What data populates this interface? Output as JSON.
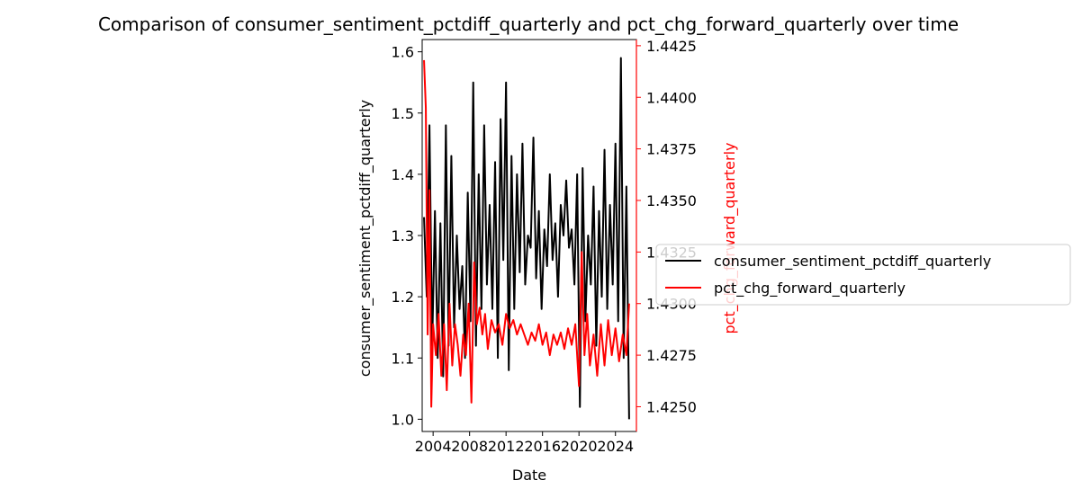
{
  "chart_data": {
    "type": "line",
    "title": "Comparison of consumer_sentiment_pctdiff_quarterly and pct_chg_forward_quarterly over time",
    "xlabel": "Date",
    "ylabel": "consumer_sentiment_pctdiff_quarterly",
    "y2label": "pct_chg_forward_quarterly",
    "xlim": [
      2002.8,
      2026.3
    ],
    "ylim": [
      0.98,
      1.62
    ],
    "y2lim": [
      1.4238,
      1.4428
    ],
    "xticks": [
      2004,
      2008,
      2012,
      2016,
      2020,
      2024
    ],
    "xtick_labels": [
      "2004",
      "2008",
      "2012",
      "2016",
      "2020",
      "2024"
    ],
    "yticks": [
      1.0,
      1.1,
      1.2,
      1.3,
      1.4,
      1.5,
      1.6
    ],
    "ytick_labels": [
      "1.0",
      "1.1",
      "1.2",
      "1.3",
      "1.4",
      "1.5",
      "1.6"
    ],
    "y2ticks": [
      1.425,
      1.4275,
      1.43,
      1.4325,
      1.435,
      1.4375,
      1.44,
      1.4425
    ],
    "y2tick_labels": [
      "1.4250",
      "1.4275",
      "1.4300",
      "1.4325",
      "1.4350",
      "1.4375",
      "1.4400",
      "1.4425"
    ],
    "legend_position": "right-outside",
    "series": [
      {
        "name": "consumer_sentiment_pctdiff_quarterly",
        "color": "#000000",
        "axis": "left",
        "x": [
          2003.0,
          2003.3,
          2003.6,
          2003.9,
          2004.2,
          2004.5,
          2004.8,
          2005.1,
          2005.4,
          2005.7,
          2006.0,
          2006.3,
          2006.6,
          2006.9,
          2007.2,
          2007.5,
          2007.8,
          2008.1,
          2008.4,
          2008.7,
          2009.0,
          2009.3,
          2009.6,
          2009.9,
          2010.2,
          2010.5,
          2010.8,
          2011.1,
          2011.4,
          2011.7,
          2012.0,
          2012.3,
          2012.6,
          2012.9,
          2013.2,
          2013.5,
          2013.8,
          2014.1,
          2014.4,
          2014.7,
          2015.0,
          2015.3,
          2015.6,
          2015.9,
          2016.2,
          2016.5,
          2016.8,
          2017.1,
          2017.4,
          2017.7,
          2018.0,
          2018.3,
          2018.6,
          2018.9,
          2019.2,
          2019.5,
          2019.8,
          2020.1,
          2020.4,
          2020.7,
          2021.0,
          2021.3,
          2021.6,
          2021.9,
          2022.2,
          2022.5,
          2022.8,
          2023.1,
          2023.4,
          2023.7,
          2024.0,
          2024.3,
          2024.6,
          2024.9,
          2025.2,
          2025.5
        ],
        "values": [
          1.33,
          1.2,
          1.48,
          1.12,
          1.34,
          1.1,
          1.32,
          1.07,
          1.48,
          1.12,
          1.43,
          1.15,
          1.3,
          1.18,
          1.25,
          1.1,
          1.37,
          1.16,
          1.55,
          1.12,
          1.4,
          1.18,
          1.48,
          1.22,
          1.35,
          1.18,
          1.42,
          1.1,
          1.49,
          1.26,
          1.55,
          1.08,
          1.43,
          1.18,
          1.4,
          1.24,
          1.45,
          1.22,
          1.3,
          1.28,
          1.46,
          1.23,
          1.34,
          1.18,
          1.31,
          1.25,
          1.4,
          1.26,
          1.32,
          1.2,
          1.35,
          1.3,
          1.39,
          1.28,
          1.31,
          1.22,
          1.4,
          1.02,
          1.41,
          1.16,
          1.3,
          1.22,
          1.38,
          1.12,
          1.34,
          1.2,
          1.44,
          1.18,
          1.35,
          1.22,
          1.45,
          1.16,
          1.59,
          1.1,
          1.38,
          1.0
        ]
      },
      {
        "name": "pct_chg_forward_quarterly",
        "color": "#ff0000",
        "axis": "right",
        "x": [
          2003.0,
          2003.2,
          2003.4,
          2003.6,
          2003.8,
          2004.0,
          2004.3,
          2004.6,
          2004.9,
          2005.2,
          2005.5,
          2005.8,
          2006.1,
          2006.4,
          2006.7,
          2007.0,
          2007.3,
          2007.6,
          2007.9,
          2008.2,
          2008.5,
          2008.8,
          2009.1,
          2009.4,
          2009.7,
          2010.0,
          2010.4,
          2010.8,
          2011.2,
          2011.6,
          2012.0,
          2012.4,
          2012.8,
          2013.2,
          2013.6,
          2014.0,
          2014.4,
          2014.8,
          2015.2,
          2015.6,
          2016.0,
          2016.4,
          2016.8,
          2017.2,
          2017.6,
          2018.0,
          2018.4,
          2018.8,
          2019.2,
          2019.6,
          2020.0,
          2020.3,
          2020.6,
          2020.9,
          2021.2,
          2021.6,
          2022.0,
          2022.4,
          2022.8,
          2023.2,
          2023.6,
          2024.0,
          2024.4,
          2024.8,
          2025.2,
          2025.5
        ],
        "values": [
          1.4418,
          1.4395,
          1.4285,
          1.4355,
          1.425,
          1.429,
          1.4275,
          1.4295,
          1.4265,
          1.429,
          1.4258,
          1.43,
          1.427,
          1.429,
          1.428,
          1.4265,
          1.4285,
          1.4275,
          1.43,
          1.4252,
          1.432,
          1.429,
          1.4298,
          1.4285,
          1.4295,
          1.4278,
          1.4292,
          1.4286,
          1.429,
          1.428,
          1.4295,
          1.4288,
          1.4292,
          1.4285,
          1.429,
          1.4285,
          1.428,
          1.4286,
          1.4282,
          1.429,
          1.428,
          1.4286,
          1.4275,
          1.4285,
          1.428,
          1.4286,
          1.4278,
          1.4288,
          1.428,
          1.429,
          1.426,
          1.4325,
          1.4275,
          1.4295,
          1.427,
          1.4285,
          1.4265,
          1.429,
          1.427,
          1.4292,
          1.4275,
          1.4288,
          1.4272,
          1.4285,
          1.4275,
          1.43
        ]
      }
    ]
  }
}
